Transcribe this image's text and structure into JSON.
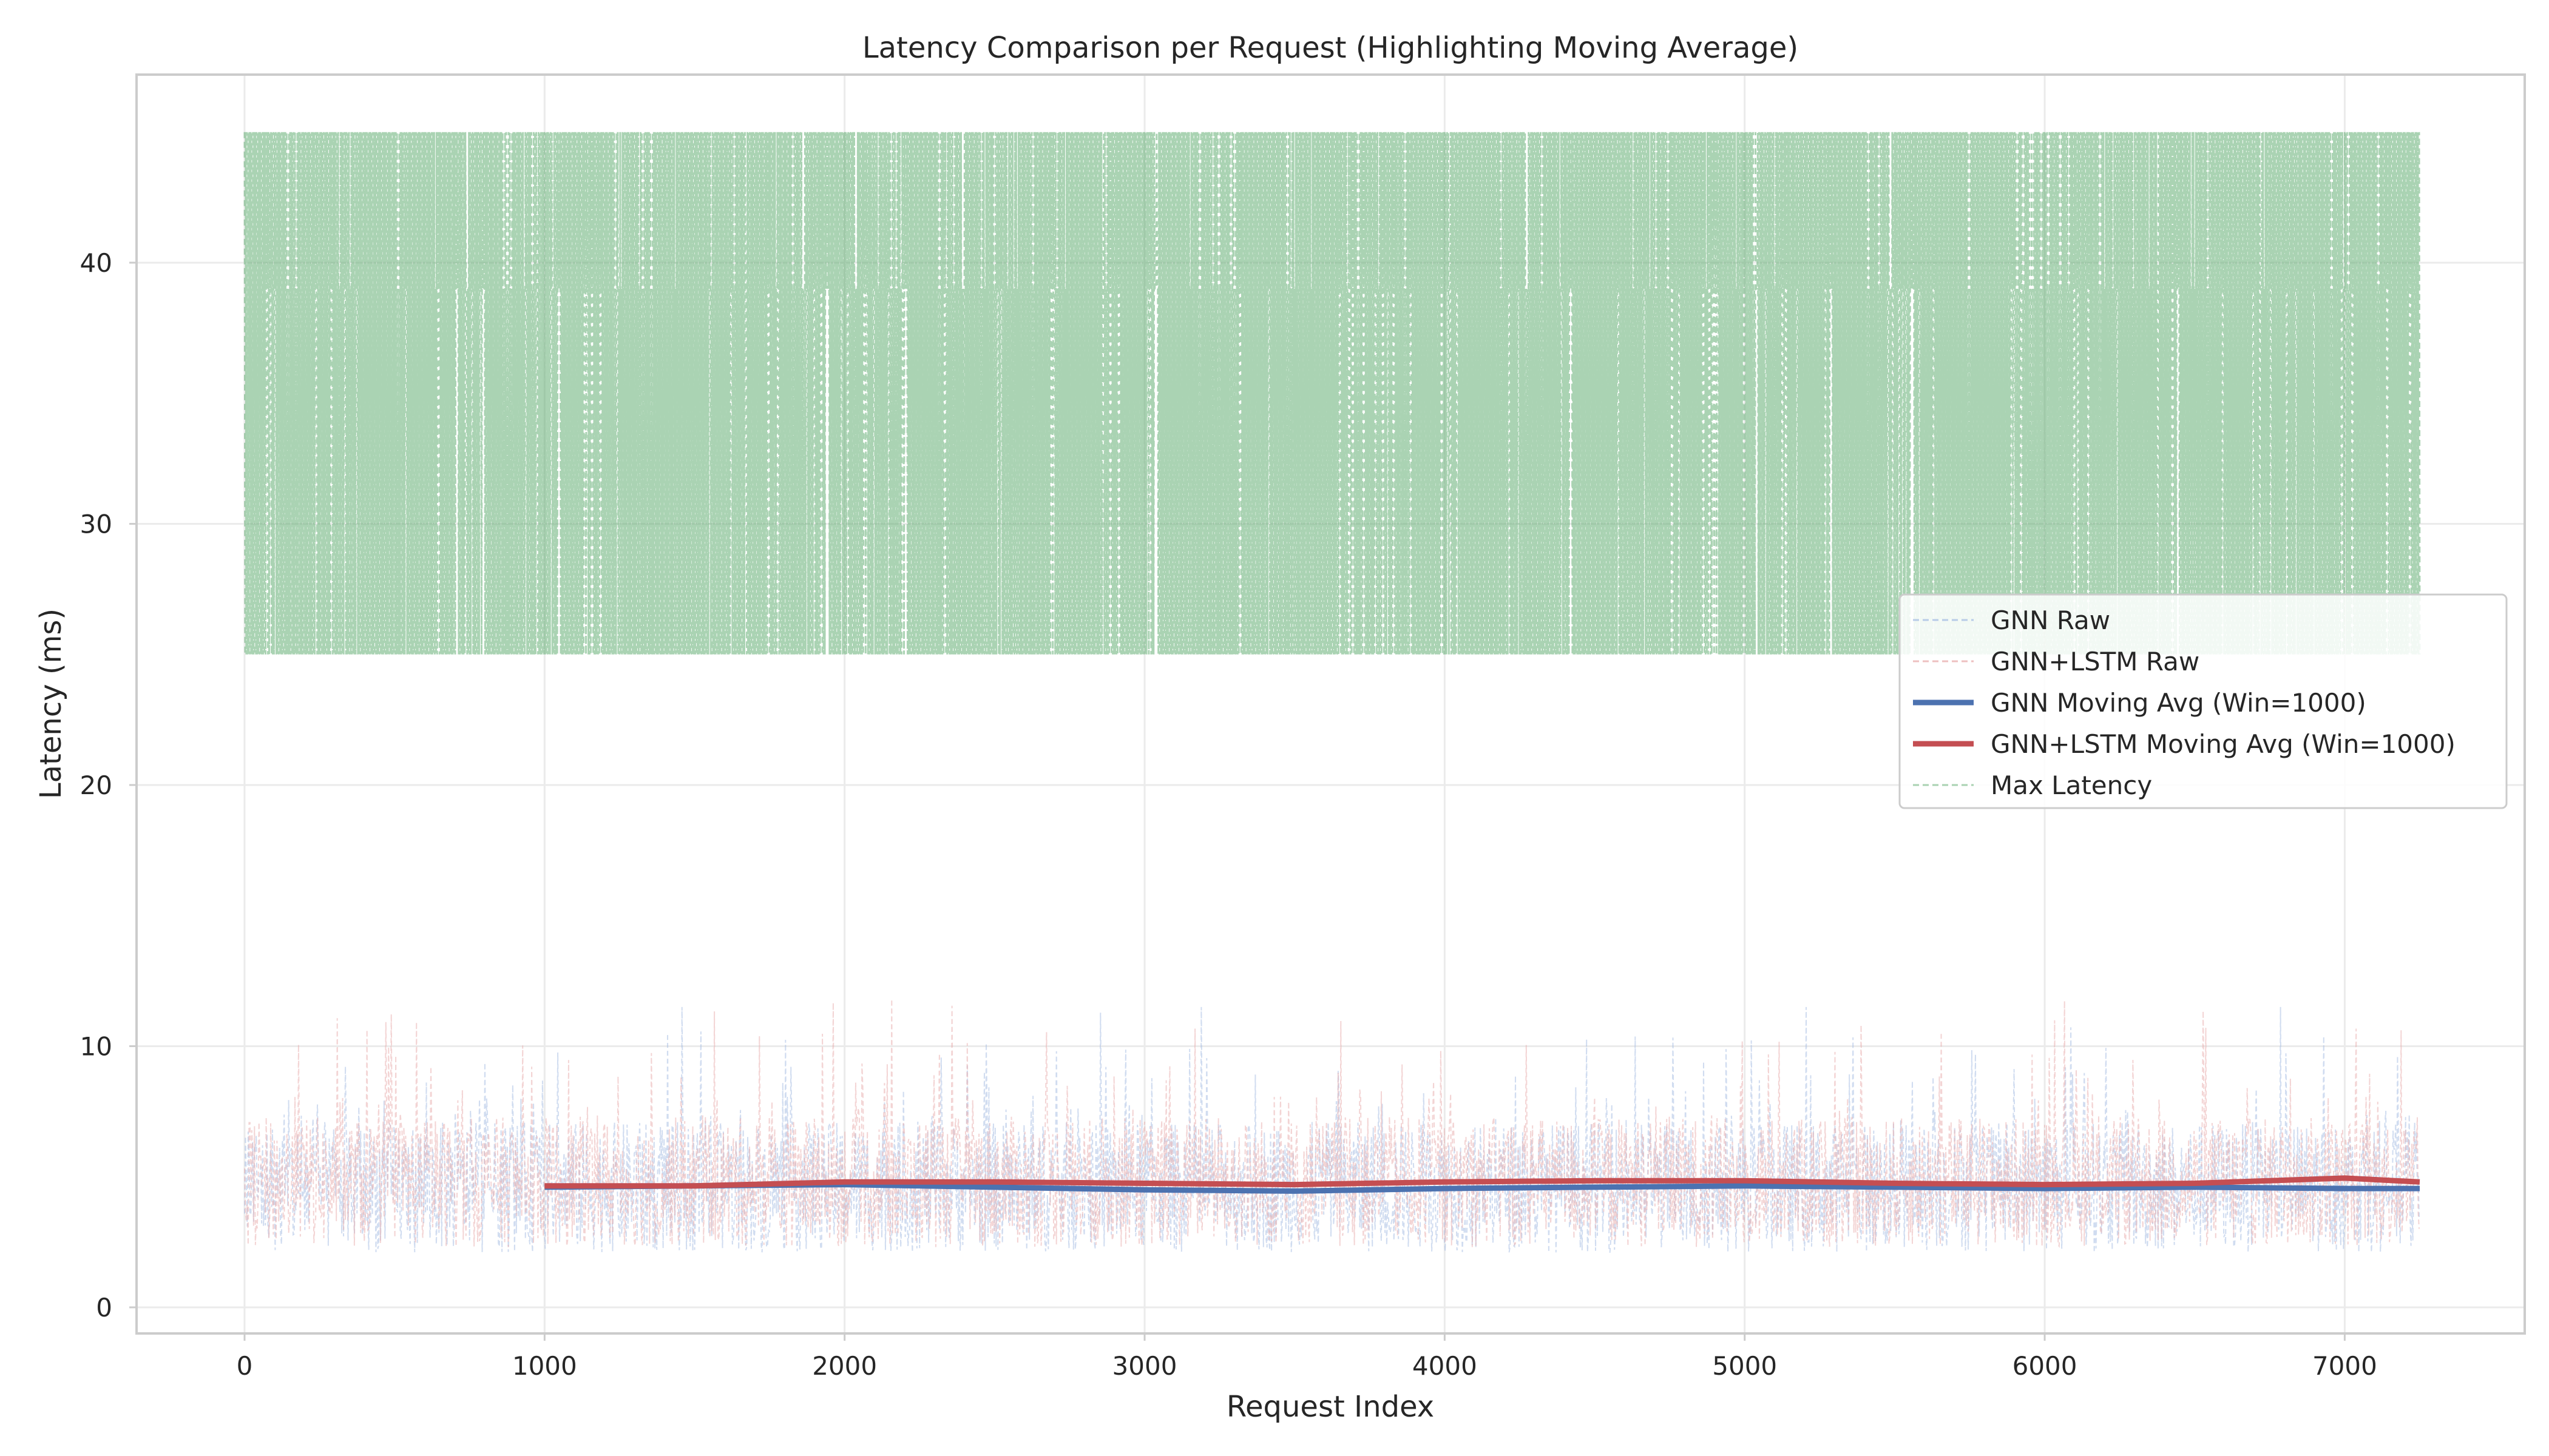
{
  "chart_data": {
    "type": "line",
    "title": "Latency Comparison per Request (Highlighting Moving Average)",
    "xlabel": "Request Index",
    "ylabel": "Latency (ms)",
    "xlim": [
      -360,
      7600
    ],
    "ylim": [
      -1,
      47.2
    ],
    "x_ticks": [
      0,
      1000,
      2000,
      3000,
      4000,
      5000,
      6000,
      7000
    ],
    "y_ticks": [
      0,
      10,
      20,
      30,
      40
    ],
    "grid": true,
    "legend_position": "center-right",
    "n_requests": 7250,
    "series": [
      {
        "name": "GNN Raw",
        "role": "raw",
        "color": "#4c72b0",
        "style": "dashed-thin",
        "mean": 4.6,
        "range": [
          1.5,
          11.5
        ]
      },
      {
        "name": "GNN+LSTM Raw",
        "role": "raw",
        "color": "#dd8452",
        "style": "dashed-thin",
        "mean": 4.8,
        "range": [
          1.5,
          11.8
        ]
      },
      {
        "name": "GNN Moving Avg (Win=1000)",
        "role": "moving_avg",
        "color": "#4c72b0",
        "style": "solid-thick",
        "x": [
          1000,
          1500,
          2000,
          2500,
          3000,
          3500,
          4000,
          4500,
          5000,
          5500,
          6000,
          6500,
          7000,
          7250
        ],
        "y": [
          4.6,
          4.65,
          4.7,
          4.6,
          4.5,
          4.45,
          4.55,
          4.6,
          4.65,
          4.6,
          4.55,
          4.6,
          4.55,
          4.55
        ]
      },
      {
        "name": "GNN+LSTM Moving Avg (Win=1000)",
        "role": "moving_avg",
        "color": "#c44e52",
        "style": "solid-thick",
        "x": [
          1000,
          1500,
          2000,
          2500,
          3000,
          3500,
          4000,
          4500,
          5000,
          5500,
          6000,
          6500,
          7000,
          7250
        ],
        "y": [
          4.65,
          4.65,
          4.8,
          4.8,
          4.75,
          4.7,
          4.8,
          4.85,
          4.85,
          4.75,
          4.7,
          4.75,
          4.95,
          4.8
        ]
      },
      {
        "name": "Max Latency",
        "role": "max",
        "color": "#55a868",
        "style": "dashed",
        "range": [
          25,
          45
        ]
      }
    ]
  }
}
